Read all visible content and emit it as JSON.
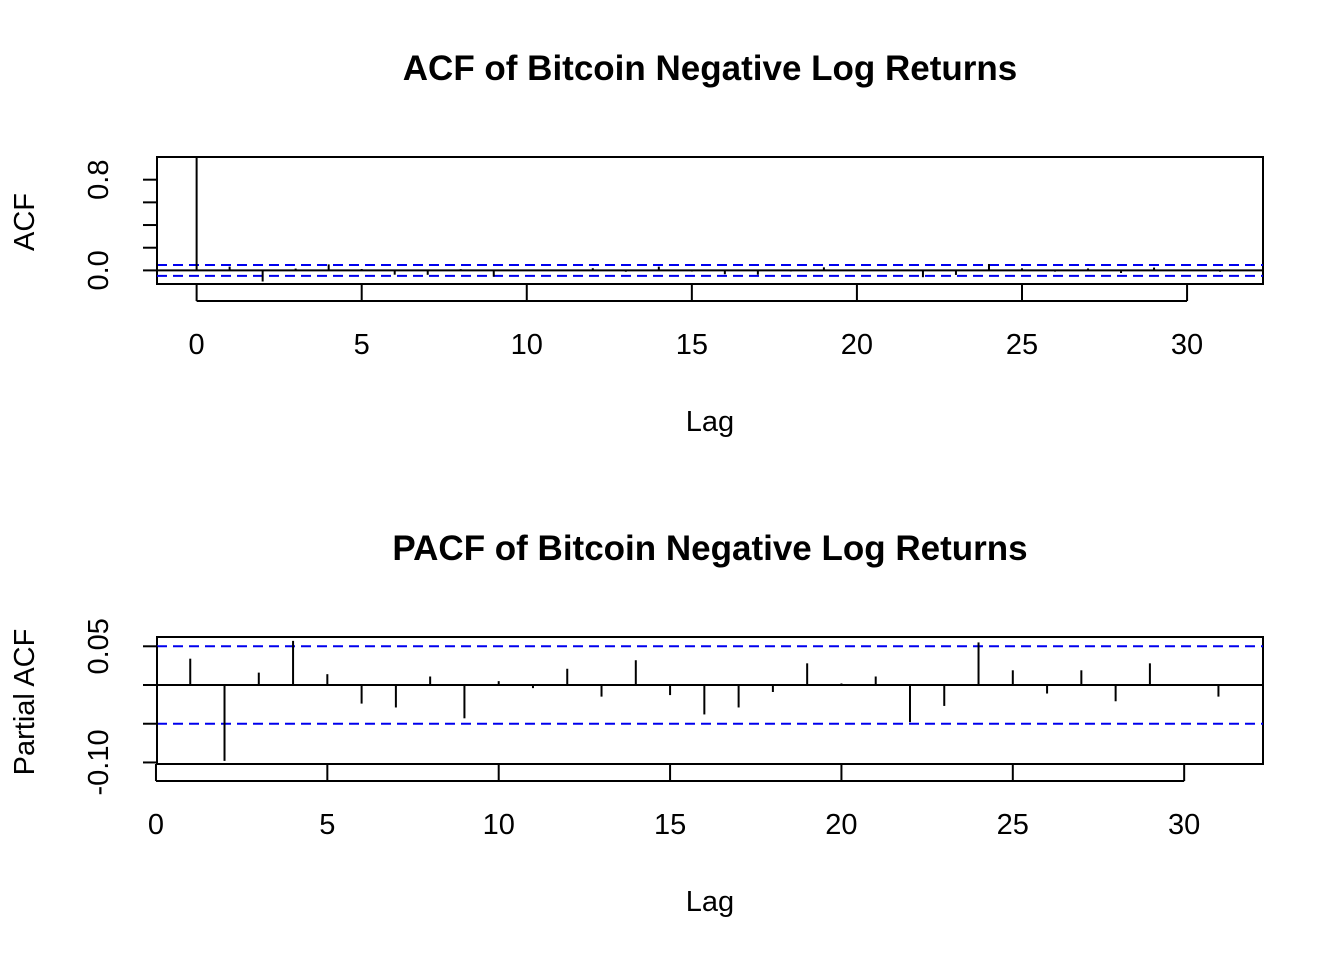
{
  "colors": {
    "confidence_band": "#0000ee",
    "spikes": "#000000",
    "frame": "#000000"
  },
  "chart_data": [
    {
      "type": "bar",
      "title": "ACF of Bitcoin Negative Log Returns",
      "xlabel": "Lag",
      "ylabel": "ACF",
      "xlim": [
        -1.2,
        32.3
      ],
      "ylim": [
        -0.12,
        1.0
      ],
      "x_ticks": [
        0,
        5,
        10,
        15,
        20,
        25,
        30
      ],
      "x_tick_labels": [
        "0",
        "5",
        "10",
        "15",
        "20",
        "25",
        "30"
      ],
      "y_ticks": [
        0.0,
        0.2,
        0.4,
        0.6,
        0.8
      ],
      "y_tick_labels": [
        "0.0",
        "",
        "",
        "",
        "0.8"
      ],
      "confidence_band": [
        -0.048,
        0.048
      ],
      "series": [
        {
          "lags": [
            0,
            1,
            2,
            3,
            4,
            5,
            6,
            7,
            8,
            9,
            10,
            11,
            12,
            13,
            14,
            15,
            16,
            17,
            18,
            19,
            20,
            21,
            22,
            23,
            24,
            25,
            26,
            27,
            28,
            29,
            30,
            31
          ],
          "values": [
            1.0,
            0.033,
            -0.098,
            0.016,
            0.053,
            0.012,
            -0.038,
            -0.039,
            0.011,
            -0.055,
            0.005,
            -0.004,
            0.019,
            -0.012,
            0.033,
            -0.01,
            -0.034,
            -0.038,
            -0.009,
            0.027,
            0.002,
            0.008,
            -0.06,
            -0.04,
            0.056,
            0.018,
            -0.011,
            0.017,
            -0.023,
            0.025,
            0.001,
            -0.012
          ]
        }
      ]
    },
    {
      "type": "bar",
      "title": "PACF of Bitcoin Negative Log Returns",
      "xlabel": "Lag",
      "ylabel": "Partial ACF",
      "xlim": [
        0.03,
        32.3
      ],
      "ylim": [
        -0.102,
        0.062
      ],
      "x_ticks": [
        0,
        5,
        10,
        15,
        20,
        25,
        30
      ],
      "x_tick_labels": [
        "0",
        "5",
        "10",
        "15",
        "20",
        "25",
        "30"
      ],
      "y_ticks": [
        -0.1,
        -0.05,
        0.0,
        0.05
      ],
      "y_tick_labels": [
        "-0.10",
        "",
        "",
        "0.05"
      ],
      "confidence_band": [
        -0.05,
        0.05
      ],
      "series": [
        {
          "lags": [
            1,
            2,
            3,
            4,
            5,
            6,
            7,
            8,
            9,
            10,
            11,
            12,
            13,
            14,
            15,
            16,
            17,
            18,
            19,
            20,
            21,
            22,
            23,
            24,
            25,
            26,
            27,
            28,
            29,
            30,
            31
          ],
          "values": [
            0.034,
            -0.098,
            0.016,
            0.057,
            0.014,
            -0.024,
            -0.029,
            0.011,
            -0.043,
            0.005,
            -0.004,
            0.021,
            -0.015,
            0.032,
            -0.013,
            -0.038,
            -0.029,
            -0.009,
            0.028,
            0.002,
            0.011,
            -0.048,
            -0.027,
            0.055,
            0.019,
            -0.011,
            0.019,
            -0.021,
            0.028,
            0.001,
            -0.015
          ]
        }
      ]
    }
  ]
}
